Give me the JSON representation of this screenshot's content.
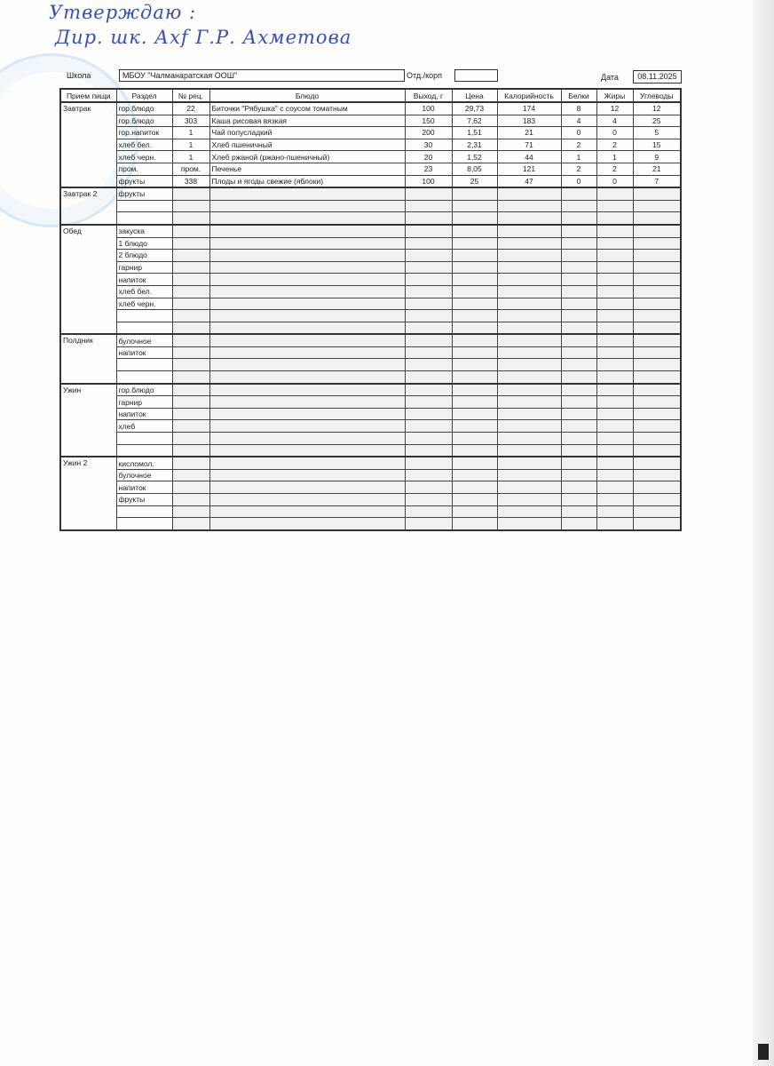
{
  "approval": {
    "line1": "Утверждаю :",
    "line2": "Дир. шк. Ахf Г.Р. Ахметова"
  },
  "header": {
    "school_label": "Школа",
    "school_value": "МБОУ \"Чалманаратская ООШ\"",
    "dept_label": "Отд./корп",
    "dept_value": "",
    "date_label": "Дата",
    "date_value": "08.11.2025"
  },
  "columns": [
    "Прием пищи",
    "Раздел",
    "№ рец.",
    "Блюдо",
    "Выход, г",
    "Цена",
    "Калорийность",
    "Белки",
    "Жиры",
    "Углеводы"
  ],
  "groups": [
    {
      "meal": "Завтрак",
      "rows": [
        [
          "гор.блюдо",
          "22",
          "Биточки \"Рябушка\" с соусом томатным",
          "100",
          "29,73",
          "174",
          "8",
          "12",
          "12"
        ],
        [
          "гор.блюдо",
          "303",
          "Каша рисовая вязкая",
          "150",
          "7,62",
          "183",
          "4",
          "4",
          "25"
        ],
        [
          "гор.напиток",
          "1",
          "Чай полусладкий",
          "200",
          "1,51",
          "21",
          "0",
          "0",
          "5"
        ],
        [
          "хлеб бел.",
          "1",
          "Хлеб пшеничный",
          "30",
          "2,31",
          "71",
          "2",
          "2",
          "15"
        ],
        [
          "хлеб черн.",
          "1",
          "Хлеб ржаной (ржано-пшеничный)",
          "20",
          "1,52",
          "44",
          "1",
          "1",
          "9"
        ],
        [
          "пром.",
          "пром.",
          "Печенье",
          "23",
          "8,05",
          "121",
          "2",
          "2",
          "21"
        ],
        [
          "фрукты",
          "338",
          "Плоды и ягоды свежие (яблоки)",
          "100",
          "25",
          "47",
          "0",
          "0",
          "7"
        ]
      ]
    },
    {
      "meal": "Завтрак 2",
      "rows": [
        [
          "фрукты"
        ],
        [
          ""
        ],
        [
          ""
        ]
      ]
    },
    {
      "meal": "Обед",
      "rows": [
        [
          "закуска"
        ],
        [
          "1 блюдо"
        ],
        [
          "2 блюдо"
        ],
        [
          "гарнир"
        ],
        [
          "напиток"
        ],
        [
          "хлеб бел."
        ],
        [
          "хлеб черн."
        ],
        [
          ""
        ],
        [
          ""
        ]
      ]
    },
    {
      "meal": "Полдник",
      "rows": [
        [
          "булочное"
        ],
        [
          "напиток"
        ],
        [
          ""
        ],
        [
          ""
        ]
      ]
    },
    {
      "meal": "Ужин",
      "rows": [
        [
          "гор.блюдо"
        ],
        [
          "гарнир"
        ],
        [
          "напиток"
        ],
        [
          "хлеб"
        ],
        [
          ""
        ],
        [
          ""
        ]
      ]
    },
    {
      "meal": "Ужин 2",
      "rows": [
        [
          "кисломол."
        ],
        [
          "булочное"
        ],
        [
          "напиток"
        ],
        [
          "фрукты"
        ],
        [
          ""
        ],
        [
          ""
        ]
      ]
    }
  ]
}
